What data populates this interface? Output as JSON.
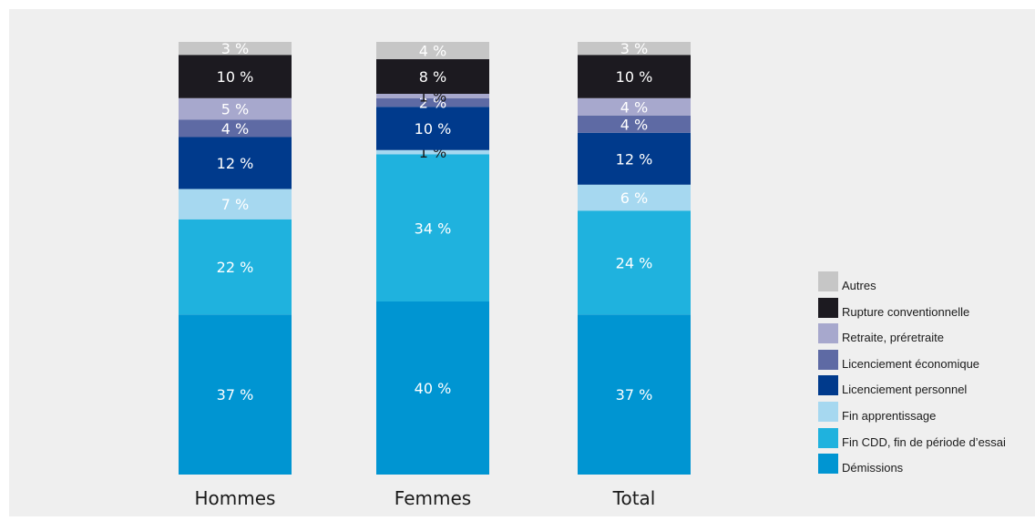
{
  "chart_data": {
    "type": "bar",
    "stacked": true,
    "categories": [
      "Hommes",
      "Femmes",
      "Total"
    ],
    "series": [
      {
        "name": "Démissions",
        "color": "#0095d2",
        "values": [
          37,
          40,
          37
        ],
        "labels": [
          "37 %",
          "40 %",
          "37 %"
        ]
      },
      {
        "name": "Fin CDD, fin de période d’essai",
        "color": "#1fb2de",
        "values": [
          22,
          34,
          24
        ],
        "labels": [
          "22 %",
          "34 %",
          "24 %"
        ]
      },
      {
        "name": "Fin apprentissage",
        "color": "#a6d8f0",
        "values": [
          7,
          1,
          6
        ],
        "labels": [
          "7 %",
          "1 %",
          "6 %"
        ]
      },
      {
        "name": "Licenciement personnel",
        "color": "#003a8c",
        "values": [
          12,
          10,
          12
        ],
        "labels": [
          "12 %",
          "10 %",
          "12 %"
        ]
      },
      {
        "name": "Licenciement économique",
        "color": "#5e6aa4",
        "values": [
          4,
          2,
          4
        ],
        "labels": [
          "4 %",
          "2 %",
          "4 %"
        ]
      },
      {
        "name": "Retraite, préretraite",
        "color": "#a7a8cd",
        "values": [
          5,
          1,
          4
        ],
        "labels": [
          "5 %",
          "1 %",
          "4 %"
        ]
      },
      {
        "name": "Rupture conventionnelle",
        "color": "#1c1a20",
        "values": [
          10,
          8,
          10
        ],
        "labels": [
          "10 %",
          "8 %",
          "10 %"
        ]
      },
      {
        "name": "Autres",
        "color": "#c6c6c6",
        "values": [
          3,
          4,
          3
        ],
        "labels": [
          "3 %",
          "4 %",
          "3 %"
        ]
      }
    ],
    "legend_order": [
      "Autres",
      "Rupture conventionnelle",
      "Retraite, préretraite",
      "Licenciement économique",
      "Licenciement personnel",
      "Fin apprentissage",
      "Fin CDD, fin de période d’essai",
      "Démissions"
    ],
    "legend_position": "right",
    "grid": false,
    "ylim": [
      0,
      100
    ]
  }
}
